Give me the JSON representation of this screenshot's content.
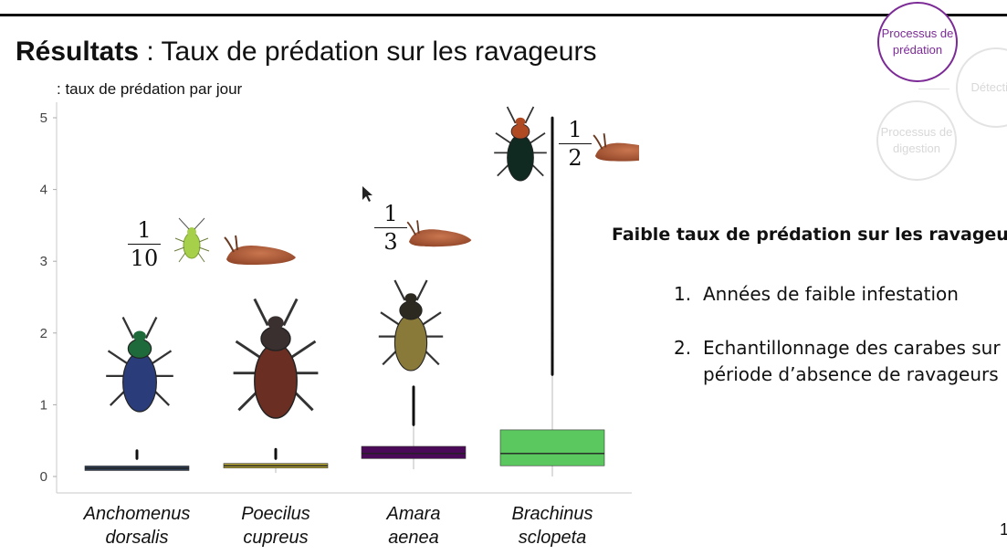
{
  "slide": {
    "title_bold": "Résultats",
    "title_rest": " : Taux de prédation sur les ravageurs",
    "page_number": "1"
  },
  "chart_data": {
    "type": "boxplot",
    "ylabel": ": taux de prédation par jour",
    "ylim": [
      0,
      5.2
    ],
    "yticks": [
      0,
      1,
      2,
      3,
      4,
      5
    ],
    "categories": [
      "Anchomenus dorsalis",
      "Poecilus cupreus",
      "Amara aenea",
      "Brachinus sclopeta"
    ],
    "category_lines": [
      [
        "Anchomenus",
        "dorsalis"
      ],
      [
        "Poecilus",
        "cupreus"
      ],
      [
        "Amara",
        "aenea"
      ],
      [
        "Brachinus",
        "sclopeta"
      ]
    ],
    "colors": [
      "#2f3f55",
      "#b3a437",
      "#4b0a57",
      "#5bc75f"
    ],
    "boxes": [
      {
        "q1": 0.1,
        "median": 0.115,
        "q3": 0.13,
        "whisker_low": 0.1,
        "whisker_high": 0.13,
        "outliers_min": 0.25,
        "outliers_max": 0.36
      },
      {
        "q1": 0.12,
        "median": 0.15,
        "q3": 0.18,
        "whisker_low": 0.05,
        "whisker_high": 0.18,
        "outliers_min": 0.25,
        "outliers_max": 0.38
      },
      {
        "q1": 0.25,
        "median": 0.32,
        "q3": 0.42,
        "whisker_low": 0.1,
        "whisker_high": 0.72,
        "outliers_min": 0.72,
        "outliers_max": 1.25
      },
      {
        "q1": 0.15,
        "median": 0.32,
        "q3": 0.65,
        "whisker_low": 0.0,
        "whisker_high": 1.42,
        "outliers_min": 1.42,
        "outliers_max": 5.0
      }
    ],
    "annotations": [
      {
        "numerator": "1",
        "denominator": "10",
        "prey": "puceron et limace"
      },
      {
        "numerator": "1",
        "denominator": "3",
        "prey": "limace"
      },
      {
        "numerator": "1",
        "denominator": "2",
        "prey": "limace"
      }
    ]
  },
  "summary": {
    "title": "Faible taux de prédation sur les ravageurs",
    "reasons": [
      {
        "num": "1.",
        "text": "Années de faible infestation"
      },
      {
        "num": "2.",
        "text": "Echantillonnage des carabes sur période d’absence de ravageurs"
      }
    ]
  },
  "process_nav": {
    "active": "Processus de prédation",
    "detection": "Détection",
    "digestion": "Processus de digestion",
    "active_color": "#7b2a96"
  },
  "icons": [
    "aphid-icon",
    "slug-icon",
    "ground-beetle-icon"
  ]
}
